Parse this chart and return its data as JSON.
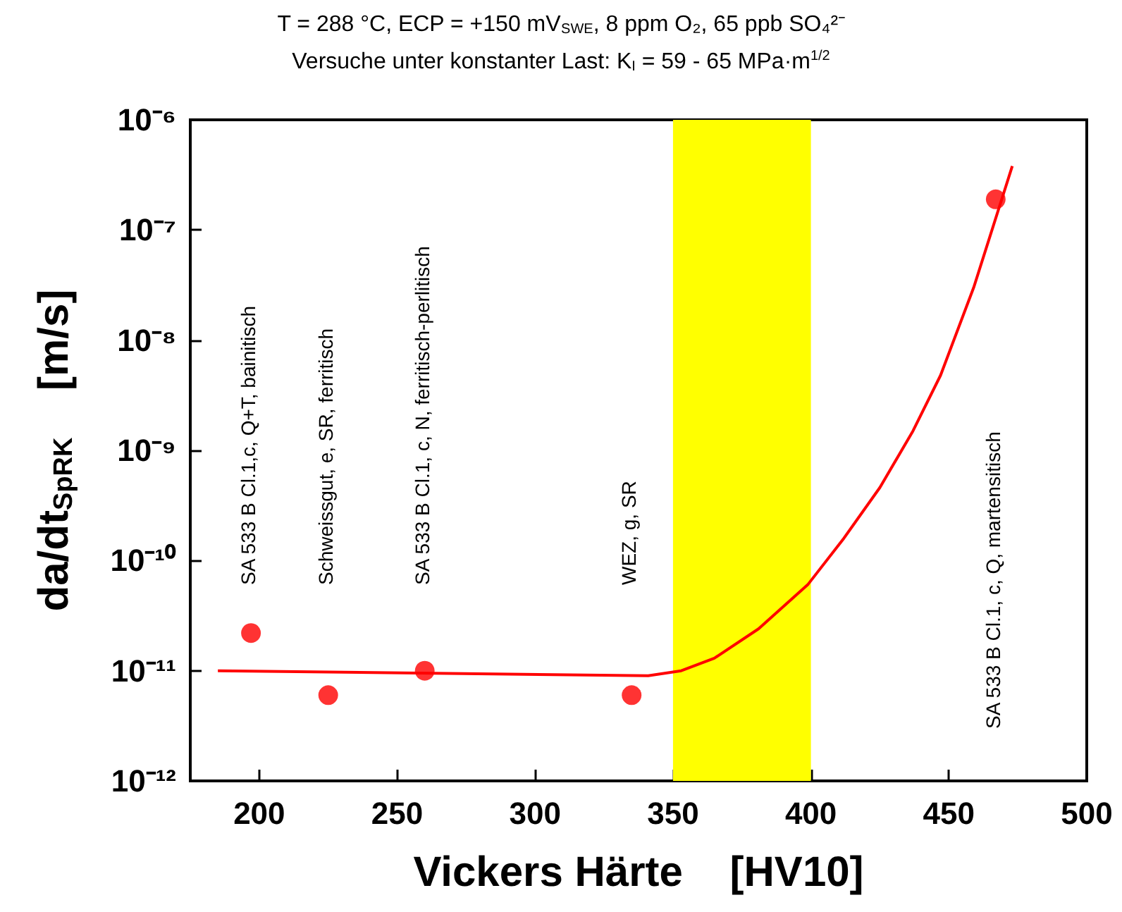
{
  "chart_data": {
    "type": "scatter",
    "title": "T = 288 °C, ECP = +150 mV$_{SWE}$, 8 ppm O₂, 65 ppb SO₄²⁻",
    "subtitle": "Versuche unter konstanter Last: K$_{I}$ = 59 - 65 MPa·m$^{1/2}$",
    "xlabel": "Vickers Härte    [HV10]",
    "ylabel": "da/dt$_{SpRK}$    [m/s]",
    "log": "y",
    "grid": false,
    "marker": "circle",
    "xlim": [
      175,
      500
    ],
    "xticks": [
      200,
      250,
      300,
      350,
      400,
      450,
      500
    ],
    "ylim": [
      1e-12,
      1e-06
    ],
    "yticks": [
      {
        "value": 1e-12,
        "label": "10⁻¹²"
      },
      {
        "value": 1e-11,
        "label": "10⁻¹¹"
      },
      {
        "value": 1e-10,
        "label": "10⁻¹⁰"
      },
      {
        "value": 1e-09,
        "label": "10⁻⁹"
      },
      {
        "value": 1e-08,
        "label": "10⁻⁸"
      },
      {
        "value": 1e-07,
        "label": "10⁻⁷"
      },
      {
        "value": 1e-06,
        "label": "10⁻⁶"
      }
    ],
    "series": [
      {
        "color": "#ff0000",
        "x": [
          197,
          225,
          260,
          335,
          467
        ],
        "values": [
          2.2e-11,
          6e-12,
          1e-11,
          6e-12,
          1.9e-07
        ]
      },
      {
        "type": "line",
        "marker": "none",
        "color": "#ff0000",
        "x": [
          185,
          341,
          353,
          365,
          381,
          399,
          412,
          425,
          437,
          447,
          459,
          473
        ],
        "values": [
          1e-11,
          9e-12,
          1e-11,
          1.3e-11,
          2.4e-11,
          6.1e-11,
          1.6e-10,
          4.6e-10,
          1.5e-09,
          4.8e-09,
          3e-08,
          3.8e-07
        ]
      }
    ],
    "bands": [
      {
        "axis": "x",
        "from": 350,
        "to": 400,
        "color": "#ffff00"
      }
    ],
    "annotations": [
      "SA 533 B Cl.1,c, Q+T, bainitisch",
      "Schweissgut, e, SR, ferritisch",
      "SA 533 B Cl.1, c, N, ferritisch-perlitisch",
      "WEZ, g, SR",
      "SA 533 B Cl.1, c, Q, martensitisch"
    ]
  }
}
